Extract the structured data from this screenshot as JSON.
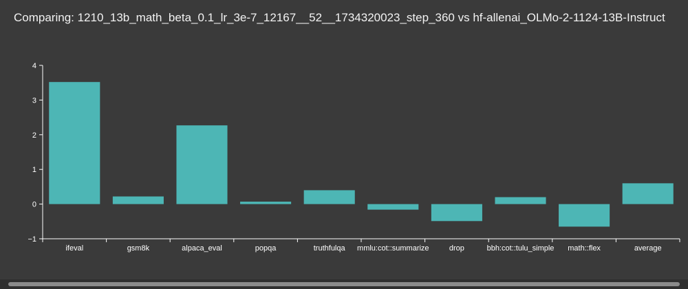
{
  "title": "Comparing: 1210_13b_math_beta_0.1_lr_3e-7_12167__52__1734320023_step_360 vs hf-allenai_OLMo-2-1124-13B-Instruct",
  "colors": {
    "background": "#3a3a3a",
    "bar": "#4db6b5",
    "axis": "#ffffff"
  },
  "chart_data": {
    "type": "bar",
    "title": "Comparing: 1210_13b_math_beta_0.1_lr_3e-7_12167__52__1734320023_step_360 vs hf-allenai_OLMo-2-1124-13B-Instruct",
    "categories": [
      "ifeval",
      "gsm8k",
      "alpaca_eval",
      "popqa",
      "truthfulqa",
      "mmlu:cot::summarize",
      "drop",
      "bbh:cot::tulu_simple",
      "math::flex",
      "average"
    ],
    "values": [
      3.52,
      0.22,
      2.27,
      0.07,
      0.4,
      -0.16,
      -0.49,
      0.2,
      -0.65,
      0.6
    ],
    "yticks": [
      -1,
      0,
      1,
      2,
      3,
      4
    ],
    "ylim": [
      -1,
      4
    ],
    "xlabel": "",
    "ylabel": "",
    "grid": false
  },
  "scrollbar": {
    "visible": true
  }
}
